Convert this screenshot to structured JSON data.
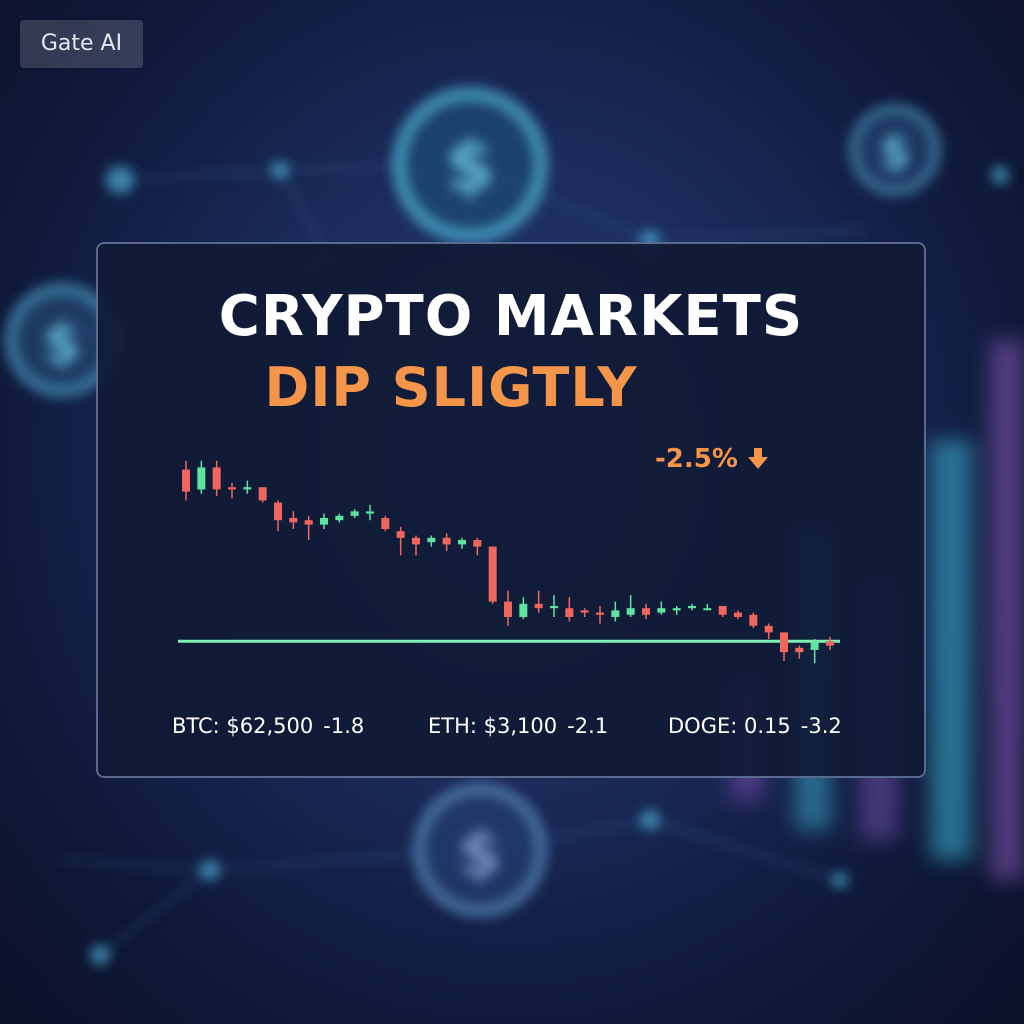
{
  "watermark": "Gate AI",
  "headline": {
    "line1": "CRYPTO MARKETS",
    "line2": "DIP SLIGTLY"
  },
  "badge": {
    "change": "-2.5%",
    "icon": "arrow-down-icon"
  },
  "tickers": [
    {
      "label": "BTC: $62,500",
      "change": "-1.8"
    },
    {
      "label": "ETH: $3,100",
      "change": "-2.1"
    },
    {
      "label": "DOGE: 0.15",
      "change": "-3.2"
    }
  ],
  "colors": {
    "title": "#ffffff",
    "accent": "#f5954a",
    "bullish": "#5ee3a0",
    "bearish": "#f0665c",
    "baseline": "#7df0b4"
  },
  "chart_data": {
    "type": "candlestick",
    "title": "",
    "xlabel": "",
    "ylabel": "",
    "ylim": [
      0,
      100
    ],
    "grid": false,
    "baseline": 14,
    "candles": [
      {
        "o": 92,
        "c": 82,
        "h": 96,
        "l": 78
      },
      {
        "o": 83,
        "c": 93,
        "h": 96,
        "l": 81
      },
      {
        "o": 93,
        "c": 83,
        "h": 96,
        "l": 80
      },
      {
        "o": 84,
        "c": 83,
        "h": 86,
        "l": 79
      },
      {
        "o": 83,
        "c": 84,
        "h": 87,
        "l": 81
      },
      {
        "o": 84,
        "c": 78,
        "h": 84,
        "l": 77
      },
      {
        "o": 77,
        "c": 69,
        "h": 78,
        "l": 64
      },
      {
        "o": 70,
        "c": 68,
        "h": 73,
        "l": 65
      },
      {
        "o": 69,
        "c": 67,
        "h": 71,
        "l": 60
      },
      {
        "o": 67,
        "c": 70,
        "h": 72,
        "l": 65
      },
      {
        "o": 69,
        "c": 71,
        "h": 72,
        "l": 68
      },
      {
        "o": 71,
        "c": 73,
        "h": 74,
        "l": 70
      },
      {
        "o": 72,
        "c": 73,
        "h": 76,
        "l": 69
      },
      {
        "o": 70,
        "c": 65,
        "h": 71,
        "l": 64
      },
      {
        "o": 64,
        "c": 61,
        "h": 66,
        "l": 53
      },
      {
        "o": 61,
        "c": 58,
        "h": 62,
        "l": 53
      },
      {
        "o": 59,
        "c": 61,
        "h": 62,
        "l": 57
      },
      {
        "o": 61,
        "c": 58,
        "h": 63,
        "l": 55
      },
      {
        "o": 58,
        "c": 60,
        "h": 61,
        "l": 56
      },
      {
        "o": 60,
        "c": 57,
        "h": 61,
        "l": 53
      },
      {
        "o": 57,
        "c": 32,
        "h": 57,
        "l": 31
      },
      {
        "o": 32,
        "c": 25,
        "h": 37,
        "l": 21
      },
      {
        "o": 25,
        "c": 31,
        "h": 34,
        "l": 24
      },
      {
        "o": 31,
        "c": 29,
        "h": 37,
        "l": 27
      },
      {
        "o": 29,
        "c": 30,
        "h": 35,
        "l": 25
      },
      {
        "o": 29,
        "c": 25,
        "h": 34,
        "l": 23
      },
      {
        "o": 28,
        "c": 27,
        "h": 29,
        "l": 25
      },
      {
        "o": 27,
        "c": 26,
        "h": 30,
        "l": 22
      },
      {
        "o": 25,
        "c": 28,
        "h": 32,
        "l": 23
      },
      {
        "o": 26,
        "c": 29,
        "h": 35,
        "l": 25
      },
      {
        "o": 29,
        "c": 26,
        "h": 31,
        "l": 24
      },
      {
        "o": 27,
        "c": 29,
        "h": 32,
        "l": 26
      },
      {
        "o": 28,
        "c": 29,
        "h": 30,
        "l": 26
      },
      {
        "o": 29,
        "c": 30,
        "h": 31,
        "l": 28
      },
      {
        "o": 29,
        "c": 29,
        "h": 31,
        "l": 28
      },
      {
        "o": 30,
        "c": 26,
        "h": 30,
        "l": 25
      },
      {
        "o": 27,
        "c": 25,
        "h": 28,
        "l": 24
      },
      {
        "o": 26,
        "c": 21,
        "h": 27,
        "l": 20
      },
      {
        "o": 21,
        "c": 18,
        "h": 22,
        "l": 15
      },
      {
        "o": 18,
        "c": 9,
        "h": 18,
        "l": 5
      },
      {
        "o": 11,
        "c": 9,
        "h": 12,
        "l": 6
      },
      {
        "o": 10,
        "c": 14,
        "h": 15,
        "l": 4
      },
      {
        "o": 14,
        "c": 12,
        "h": 16,
        "l": 10
      }
    ]
  }
}
